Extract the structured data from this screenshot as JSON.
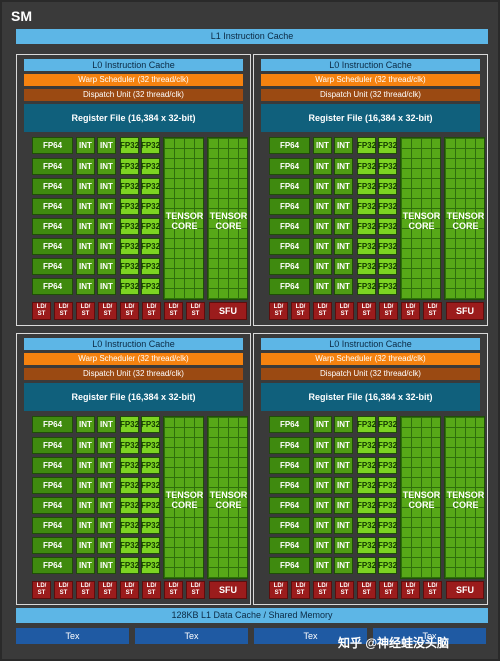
{
  "sm": {
    "title": "SM",
    "l1_instruction_cache": "L1 Instruction Cache",
    "l1_data_cache": "128KB L1 Data Cache / Shared Memory",
    "tex_units": [
      "Tex",
      "Tex",
      "Tex",
      "Tex"
    ],
    "watermark": "知乎 @神经蛙没头脑"
  },
  "block": {
    "l0_cache": "L0 Instruction Cache",
    "warp_scheduler": "Warp Scheduler (32 thread/clk)",
    "dispatch_unit": "Dispatch Unit (32 thread/clk)",
    "register_file": "Register File (16,384 x 32-bit)",
    "fp64": "FP64",
    "int": "INT",
    "fp32": "FP32",
    "tensor_core": "TENSOR\nCORE",
    "ldst": "LD/\nST",
    "sfu": "SFU"
  },
  "colors": {
    "background": "#3a3a3a",
    "cache": "#5db6e6",
    "warp_scheduler": "#f5820f",
    "dispatch_unit": "#9b4a12",
    "register_file": "#10607c",
    "fp64": "#3f8a0f",
    "int": "#4f9c14",
    "fp32": "#7cd322",
    "ldst_sfu": "#9b1c1c",
    "tex": "#1f5aa3"
  }
}
